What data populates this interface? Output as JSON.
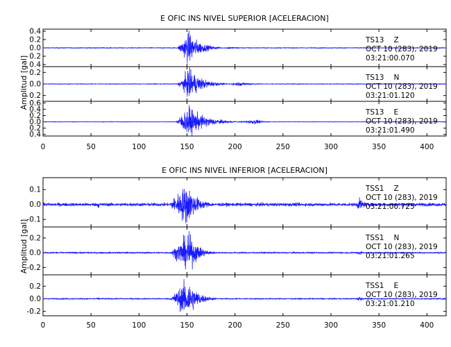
{
  "chart_data": [
    {
      "type": "line",
      "title": "E OFIC INS NIVEL SUPERIOR [ACELERACION]",
      "ylabel": "Amplitud [gal]",
      "xlim": [
        0,
        420
      ],
      "x_ticks": [
        "0",
        "50",
        "100",
        "150",
        "200",
        "250",
        "300",
        "350",
        "400"
      ],
      "series_color": "#1a1aff",
      "panels": [
        {
          "station": "TS13",
          "component": "Z",
          "date": "OCT 10 (283), 2019",
          "time": "03:21:00.070",
          "ylim": [
            -0.45,
            0.45
          ],
          "y_ticks": [
            -0.4,
            -0.2,
            0.0,
            0.2,
            0.4
          ],
          "y_tick_labels": [
            "0.4",
            "0.2",
            "0.0",
            "0.2",
            "0.4"
          ],
          "noise": 0.012,
          "bursts": [
            {
              "t0": 140,
              "t1": 185,
              "peak_t": 152,
              "peak_amp": 0.45
            },
            {
              "t0": 185,
              "t1": 240,
              "peak_t": 195,
              "peak_amp": 0.03
            }
          ]
        },
        {
          "station": "TS13",
          "component": "N",
          "date": "OCT 10 (283), 2019",
          "time": "03:21:01.120",
          "ylim": [
            -0.3,
            0.3
          ],
          "y_ticks": [
            -0.2,
            0.0,
            0.2
          ],
          "y_tick_labels": [
            "0.2",
            "0.0",
            "0.2"
          ],
          "noise": 0.008,
          "bursts": [
            {
              "t0": 140,
              "t1": 190,
              "peak_t": 153,
              "peak_amp": 0.3
            },
            {
              "t0": 190,
              "t1": 250,
              "peak_t": 205,
              "peak_amp": 0.04
            }
          ]
        },
        {
          "station": "TS13",
          "component": "E",
          "date": "OCT 10 (283), 2019",
          "time": "03:21:01.490",
          "ylim": [
            -0.45,
            0.65
          ],
          "y_ticks": [
            -0.4,
            -0.2,
            0.0,
            0.2,
            0.4,
            0.6
          ],
          "y_tick_labels": [
            "0.4",
            "0.2",
            "0.0",
            "0.2",
            "0.4",
            "0.6"
          ],
          "noise": 0.01,
          "bursts": [
            {
              "t0": 138,
              "t1": 200,
              "peak_t": 152,
              "peak_amp": 0.55
            },
            {
              "t0": 200,
              "t1": 245,
              "peak_t": 222,
              "peak_amp": 0.08
            }
          ]
        }
      ]
    },
    {
      "type": "line",
      "title": "E OFIC INS NIVEL INFERIOR [ACELERACION]",
      "ylabel": "Amplitud [gal]",
      "xlim": [
        0,
        420
      ],
      "x_ticks": [
        "0",
        "50",
        "100",
        "150",
        "200",
        "250",
        "300",
        "350",
        "400"
      ],
      "series_color": "#1a1aff",
      "panels": [
        {
          "station": "TSS1",
          "component": "Z",
          "date": "OCT 10 (283), 2019",
          "time": "03:21:00.725",
          "ylim": [
            -0.15,
            0.18
          ],
          "y_ticks": [
            -0.1,
            0.0,
            0.1
          ],
          "y_tick_labels": [
            "-0.1",
            "0.0",
            "0.1"
          ],
          "noise": 0.012,
          "bursts": [
            {
              "t0": 130,
              "t1": 180,
              "peak_t": 150,
              "peak_amp": 0.16
            },
            {
              "t0": 55,
              "t1": 65,
              "peak_t": 58,
              "peak_amp": 0.03
            },
            {
              "t0": 325,
              "t1": 345,
              "peak_t": 330,
              "peak_amp": 0.05
            }
          ]
        },
        {
          "station": "TSS1",
          "component": "N",
          "date": "OCT 10 (283), 2019",
          "time": "03:21:01.265",
          "ylim": [
            -0.3,
            0.35
          ],
          "y_ticks": [
            -0.2,
            0.0,
            0.2
          ],
          "y_tick_labels": [
            "-0.2",
            "0.0",
            "0.2"
          ],
          "noise": 0.012,
          "bursts": [
            {
              "t0": 132,
              "t1": 180,
              "peak_t": 152,
              "peak_amp": 0.3
            },
            {
              "t0": 325,
              "t1": 340,
              "peak_t": 330,
              "peak_amp": 0.04
            }
          ]
        },
        {
          "station": "TSS1",
          "component": "E",
          "date": "OCT 10 (283), 2019",
          "time": "03:21:01.210",
          "ylim": [
            -0.27,
            0.38
          ],
          "y_ticks": [
            -0.2,
            0.0,
            0.2
          ],
          "y_tick_labels": [
            "-0.2",
            "0.0",
            "0.2"
          ],
          "noise": 0.012,
          "bursts": [
            {
              "t0": 132,
              "t1": 180,
              "peak_t": 151,
              "peak_amp": 0.36
            },
            {
              "t0": 55,
              "t1": 65,
              "peak_t": 58,
              "peak_amp": 0.025
            },
            {
              "t0": 325,
              "t1": 340,
              "peak_t": 330,
              "peak_amp": 0.04
            }
          ]
        }
      ]
    }
  ]
}
